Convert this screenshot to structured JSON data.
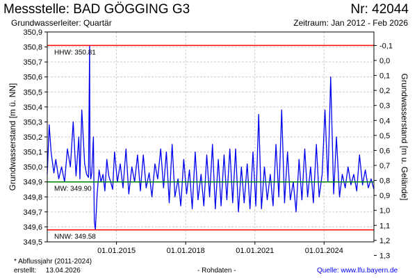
{
  "header": {
    "title": "Messstelle: BAD GÖGGING G3",
    "number": "Nr: 42044",
    "aquifer": "Grundwasserleiter: Quartär",
    "period": "Zeitraum: Jan 2012 - Feb 2026"
  },
  "footer": {
    "footnote": "* Abflussjahr (2011-2024)",
    "created_label": "erstellt:",
    "created_date": "13.04.2026",
    "rawdata": "- Rohdaten -",
    "source_label": "Quelle:",
    "source_url": "www.lfu.bayern.de"
  },
  "colors": {
    "series": "#0000ee",
    "hhw": "#ff0000",
    "nnw": "#ff0000",
    "mw": "#008000",
    "grid": "#cccccc"
  },
  "chart_data": {
    "type": "line",
    "ylabel": "Grundwasserstand [m ü. NN]",
    "ylabel_right": "Grundwasserstand [m u. Gelände]",
    "ylim": [
      349.5,
      350.9
    ],
    "yticks": [
      "350,9",
      "350,8",
      "350,7",
      "350,6",
      "350,5",
      "350,4",
      "350,3",
      "350,2",
      "350,1",
      "350,0",
      "349,9",
      "349,8",
      "349,7",
      "349,6",
      "349,5"
    ],
    "yticks_right": [
      "-0,1",
      "0,0",
      "0,1",
      "0,2",
      "0,3",
      "0,4",
      "0,5",
      "0,6",
      "0,7",
      "0,8",
      "0,9",
      "1,0",
      "1,1",
      "1,2",
      "1,3"
    ],
    "right_axis_value_offset": 350.71,
    "xlim": [
      "2012-01-01",
      "2026-02-28"
    ],
    "xticks": [
      {
        "date": "2015-01-01",
        "label": "01.01.2015"
      },
      {
        "date": "2018-01-01",
        "label": "01.01.2018"
      },
      {
        "date": "2021-01-01",
        "label": "01.01.2021"
      },
      {
        "date": "2024-01-01",
        "label": "01.01.2024"
      }
    ],
    "grid": true,
    "reference_lines": [
      {
        "name": "HHW",
        "value": 350.81,
        "label": "HHW: 350.81",
        "color": "#ff0000"
      },
      {
        "name": "MW",
        "value": 349.9,
        "label": "MW: 349.90",
        "color": "#008000"
      },
      {
        "name": "NNW",
        "value": 349.58,
        "label": "NNW: 349.58",
        "color": "#ff0000"
      }
    ],
    "series": [
      {
        "color": "#0000ee",
        "x": [
          "2012-01-01",
          "2012-02-01",
          "2012-03-01",
          "2012-04-15",
          "2012-05-15",
          "2012-07-01",
          "2012-08-15",
          "2012-10-01",
          "2012-11-15",
          "2013-01-01",
          "2013-02-15",
          "2013-04-01",
          "2013-05-15",
          "2013-06-01",
          "2013-07-01",
          "2013-08-15",
          "2013-09-15",
          "2013-10-15",
          "2013-11-01",
          "2013-11-08",
          "2013-11-20",
          "2013-12-05",
          "2014-01-01",
          "2014-01-15",
          "2014-02-01",
          "2014-03-01",
          "2014-04-01",
          "2014-05-01",
          "2014-06-01",
          "2014-07-01",
          "2014-08-01",
          "2014-09-01",
          "2014-10-01",
          "2014-11-01",
          "2014-12-01",
          "2015-01-15",
          "2015-03-01",
          "2015-04-15",
          "2015-06-01",
          "2015-07-15",
          "2015-09-01",
          "2015-10-15",
          "2015-12-01",
          "2016-01-15",
          "2016-03-01",
          "2016-04-15",
          "2016-06-01",
          "2016-07-15",
          "2016-09-01",
          "2016-10-15",
          "2016-12-01",
          "2017-01-15",
          "2017-03-01",
          "2017-04-15",
          "2017-06-01",
          "2017-07-15",
          "2017-09-01",
          "2017-10-15",
          "2017-12-01",
          "2018-01-15",
          "2018-03-01",
          "2018-04-15",
          "2018-06-01",
          "2018-07-15",
          "2018-09-01",
          "2018-10-15",
          "2018-12-01",
          "2019-01-15",
          "2019-03-01",
          "2019-04-15",
          "2019-06-01",
          "2019-07-15",
          "2019-09-01",
          "2019-10-15",
          "2019-12-01",
          "2020-01-15",
          "2020-03-01",
          "2020-04-15",
          "2020-06-01",
          "2020-07-15",
          "2020-09-01",
          "2020-10-15",
          "2020-12-01",
          "2021-01-15",
          "2021-03-01",
          "2021-04-15",
          "2021-06-01",
          "2021-07-15",
          "2021-09-01",
          "2021-10-15",
          "2021-12-01",
          "2022-01-15",
          "2022-03-01",
          "2022-04-15",
          "2022-06-01",
          "2022-07-15",
          "2022-09-01",
          "2022-10-15",
          "2022-12-01",
          "2023-01-15",
          "2023-03-01",
          "2023-04-15",
          "2023-06-01",
          "2023-07-15",
          "2023-09-01",
          "2023-10-15",
          "2023-12-01",
          "2024-01-15",
          "2024-03-01",
          "2024-04-15",
          "2024-06-01",
          "2024-07-15",
          "2024-09-01",
          "2024-10-15",
          "2024-12-01",
          "2025-01-15",
          "2025-03-01",
          "2025-04-15",
          "2025-06-01",
          "2025-07-15",
          "2025-09-01",
          "2025-10-15",
          "2025-12-01",
          "2026-01-15",
          "2026-02-28"
        ],
        "values": [
          349.95,
          350.28,
          350.1,
          349.96,
          350.05,
          349.92,
          350.0,
          349.9,
          350.12,
          350.0,
          350.3,
          349.94,
          350.2,
          349.92,
          350.38,
          350.02,
          349.95,
          349.93,
          350.81,
          350.0,
          349.92,
          349.96,
          350.2,
          349.64,
          349.58,
          349.82,
          349.98,
          349.9,
          349.95,
          349.84,
          350.05,
          349.94,
          349.9,
          349.85,
          350.1,
          349.9,
          350.02,
          349.86,
          350.12,
          349.82,
          350.0,
          349.9,
          350.08,
          349.84,
          350.08,
          349.86,
          349.96,
          349.8,
          350.02,
          349.92,
          350.12,
          349.86,
          350.1,
          349.76,
          350.15,
          349.8,
          349.92,
          349.74,
          350.05,
          349.82,
          349.98,
          349.72,
          350.1,
          349.78,
          349.95,
          349.74,
          350.08,
          349.8,
          350.15,
          349.72,
          350.05,
          349.74,
          350.08,
          349.78,
          350.12,
          349.76,
          350.12,
          349.7,
          350.0,
          349.76,
          350.02,
          349.72,
          350.1,
          349.74,
          350.35,
          349.72,
          350.0,
          349.78,
          349.95,
          349.74,
          350.15,
          349.8,
          350.38,
          349.76,
          350.1,
          349.78,
          349.9,
          349.7,
          350.05,
          349.78,
          350.12,
          349.8,
          350.0,
          349.76,
          350.15,
          349.8,
          349.95,
          350.38,
          349.9,
          350.6,
          349.82,
          350.2,
          349.8,
          349.95,
          349.86,
          350.0,
          349.88,
          349.95,
          349.84,
          350.08,
          349.88,
          349.98,
          349.86,
          349.92,
          349.85
        ]
      }
    ]
  }
}
